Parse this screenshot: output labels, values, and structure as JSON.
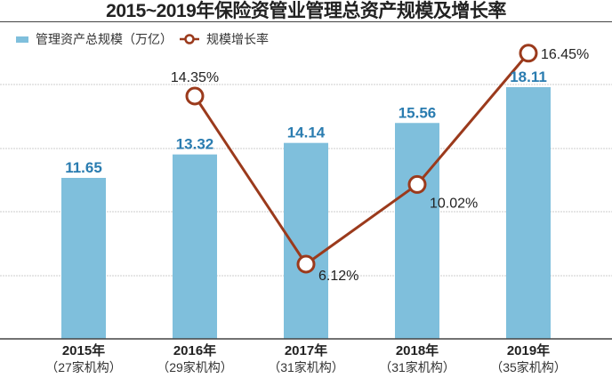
{
  "title": "2015~2019年保险资管业管理总资产规模及增长率",
  "legend": {
    "bar_label": "管理资产总规模（万亿）",
    "line_label": "规模增长率"
  },
  "colors": {
    "bar": "#7fbfdc",
    "bar_value_text": "#2a7cb0",
    "line": "#9b3a1c",
    "grid": "#cccccc",
    "axis": "#444444"
  },
  "x_labels": [
    {
      "year": "2015年",
      "sub": "（27家机构）"
    },
    {
      "year": "2016年",
      "sub": "（29家机构）"
    },
    {
      "year": "2017年",
      "sub": "（31家机构）"
    },
    {
      "year": "2018年",
      "sub": "（31家机构）"
    },
    {
      "year": "2019年",
      "sub": "（35家机构）"
    }
  ],
  "bar_value_labels": [
    "11.65",
    "13.32",
    "14.14",
    "15.56",
    "18.11"
  ],
  "line_value_labels": [
    "14.35%",
    "6.12%",
    "10.02%",
    "16.45%"
  ],
  "chart_data": {
    "type": "bar+line",
    "title": "2015~2019年保险资管业管理总资产规模及增长率",
    "categories": [
      "2015年（27家机构）",
      "2016年（29家机构）",
      "2017年（31家机构）",
      "2018年（31家机构）",
      "2019年（35家机构）"
    ],
    "series": [
      {
        "name": "管理资产总规模（万亿）",
        "type": "bar",
        "values": [
          11.65,
          13.32,
          14.14,
          15.56,
          18.11
        ]
      },
      {
        "name": "规模增长率",
        "type": "line",
        "unit": "%",
        "values": [
          null,
          14.35,
          6.12,
          10.02,
          16.45
        ]
      }
    ],
    "xlabel": "",
    "ylabel": "",
    "grid": true,
    "legend_position": "top-left"
  }
}
